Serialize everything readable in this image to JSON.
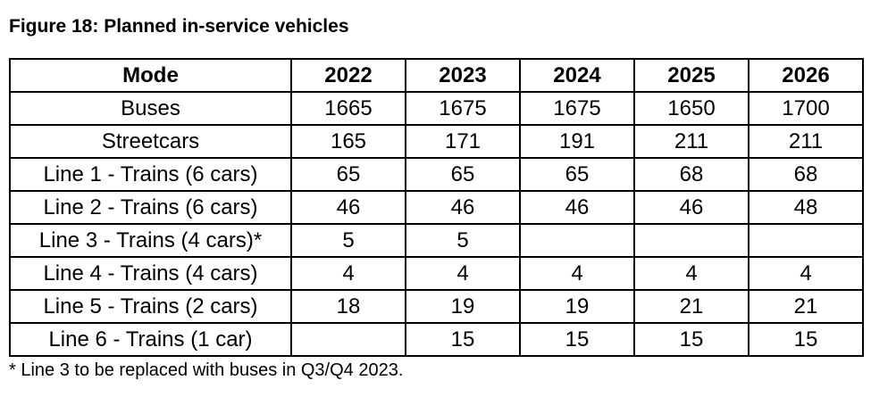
{
  "title": "Figure 18: Planned in-service vehicles",
  "table": {
    "columns": [
      "Mode",
      "2022",
      "2023",
      "2024",
      "2025",
      "2026"
    ],
    "rows": [
      {
        "mode": "Buses",
        "values": [
          "1665",
          "1675",
          "1675",
          "1650",
          "1700"
        ]
      },
      {
        "mode": "Streetcars",
        "values": [
          "165",
          "171",
          "191",
          "211",
          "211"
        ]
      },
      {
        "mode": "Line 1 - Trains (6 cars)",
        "values": [
          "65",
          "65",
          "65",
          "68",
          "68"
        ]
      },
      {
        "mode": "Line 2 - Trains (6 cars)",
        "values": [
          "46",
          "46",
          "46",
          "46",
          "48"
        ]
      },
      {
        "mode": "Line 3 - Trains (4 cars)*",
        "values": [
          "5",
          "5",
          "",
          "",
          ""
        ]
      },
      {
        "mode": "Line 4 - Trains (4 cars)",
        "values": [
          "4",
          "4",
          "4",
          "4",
          "4"
        ]
      },
      {
        "mode": "Line 5 - Trains (2 cars)",
        "values": [
          "18",
          "19",
          "19",
          "21",
          "21"
        ]
      },
      {
        "mode": "Line 6 - Trains (1 car)",
        "values": [
          "",
          "15",
          "15",
          "15",
          "15"
        ]
      }
    ]
  },
  "footnote": "* Line 3 to be replaced with buses in Q3/Q4 2023.",
  "colors": {
    "text": "#000000",
    "border": "#000000",
    "background": "#ffffff"
  }
}
